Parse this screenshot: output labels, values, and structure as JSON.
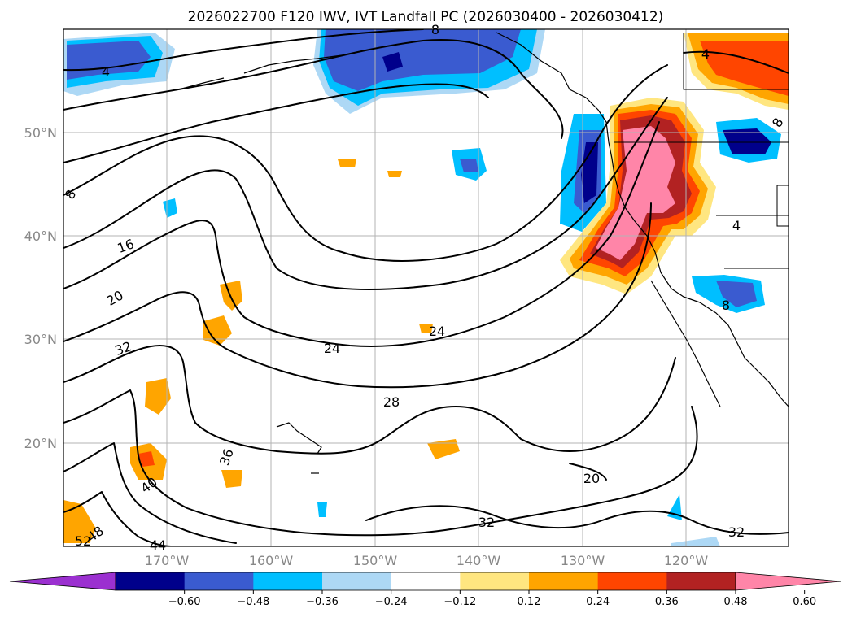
{
  "title": "2026022700 F120 IWV, IVT Landfall PC (2026030400 - 2026030412)",
  "lat_labels": [
    "50°N",
    "40°N",
    "30°N",
    "20°N"
  ],
  "lon_labels": [
    "170°W",
    "160°W",
    "150°W",
    "140°W",
    "130°W",
    "120°W"
  ],
  "colorbar": {
    "ticks": [
      "−0.60",
      "−0.48",
      "−0.36",
      "−0.24",
      "−0.12",
      "0.12",
      "0.24",
      "0.36",
      "0.48",
      "0.60"
    ],
    "colors": [
      "#9b30d0",
      "#00008b",
      "#3a5bd0",
      "#00bfff",
      "#add8f5",
      "#ffffff",
      "#ffe680",
      "#ffa500",
      "#ff4500",
      "#b22222",
      "#ff85a8"
    ]
  },
  "contour_labels": [
    "4",
    "4",
    "8",
    "8",
    "8",
    "16",
    "20",
    "32",
    "24",
    "24",
    "28",
    "36",
    "40",
    "48",
    "52",
    "44",
    "20",
    "32",
    "32",
    "4",
    "8"
  ],
  "colors": {
    "dark_blue": "#00008b",
    "mid_blue": "#3a5bd0",
    "light_blue": "#00bfff",
    "pale_blue": "#add8f5",
    "yellow": "#ffe680",
    "orange": "#ffa500",
    "red_orange": "#ff4500",
    "dark_red": "#b22222",
    "pink": "#ff85a8"
  }
}
